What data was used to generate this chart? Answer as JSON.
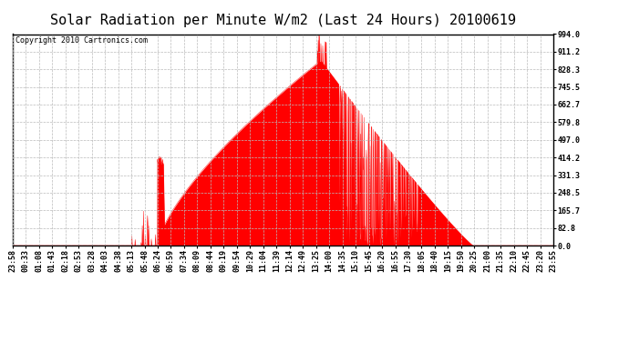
{
  "title": "Solar Radiation per Minute W/m2 (Last 24 Hours) 20100619",
  "copyright_text": "Copyright 2010 Cartronics.com",
  "y_max": 994.0,
  "y_ticks": [
    0.0,
    82.8,
    165.7,
    248.5,
    331.3,
    414.2,
    497.0,
    579.8,
    662.7,
    745.5,
    828.3,
    911.2,
    994.0
  ],
  "fill_color": "#FF0000",
  "line_color": "#FF0000",
  "background_color": "#FFFFFF",
  "grid_color": "#BBBBBB",
  "dashed_line_color": "#FF0000",
  "title_fontsize": 11,
  "copyright_fontsize": 6,
  "tick_fontsize": 6,
  "x_labels": [
    "23:58",
    "00:33",
    "01:08",
    "01:43",
    "02:18",
    "02:53",
    "03:28",
    "04:03",
    "04:38",
    "05:13",
    "05:48",
    "06:24",
    "06:59",
    "07:34",
    "08:09",
    "08:44",
    "09:19",
    "09:54",
    "10:29",
    "11:04",
    "11:39",
    "12:14",
    "12:49",
    "13:25",
    "14:00",
    "14:35",
    "15:10",
    "15:45",
    "16:20",
    "16:55",
    "17:30",
    "18:05",
    "18:40",
    "19:15",
    "19:50",
    "20:25",
    "21:00",
    "21:35",
    "22:10",
    "22:45",
    "23:20",
    "23:55"
  ],
  "rise_minute": 385,
  "set_minute": 1225,
  "peak_minute": 820,
  "peak_value": 870,
  "spike_peak_minute": 815,
  "spike_peak_value": 994
}
